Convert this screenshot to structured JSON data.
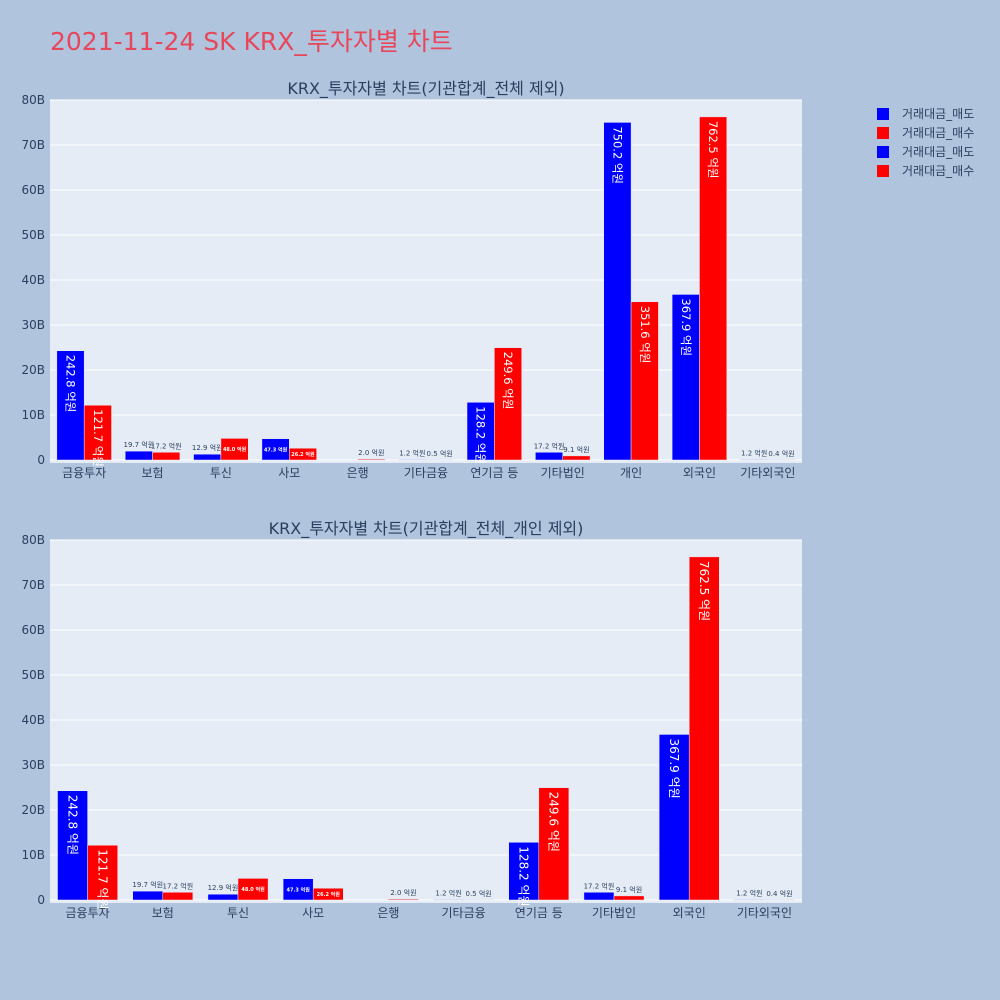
{
  "page_title": "2021-11-24 SK KRX_투자자별 차트",
  "legend": [
    {
      "label": "거래대금_매도",
      "color": "#0000ff"
    },
    {
      "label": "거래대금_매수",
      "color": "#ff0000"
    },
    {
      "label": "거래대금_매도",
      "color": "#0000ff"
    },
    {
      "label": "거래대금_매수",
      "color": "#ff0000"
    }
  ],
  "chart_data": [
    {
      "type": "bar",
      "title": "KRX_투자자별 차트(기관합계_전체 제외)",
      "categories": [
        "금융투자",
        "보험",
        "투신",
        "사모",
        "은행",
        "기타금융",
        "연기금 등",
        "기타법인",
        "개인",
        "외국인",
        "기타외국인"
      ],
      "ylim": [
        0,
        80
      ],
      "yticks": [
        "0",
        "10B",
        "20B",
        "30B",
        "40B",
        "50B",
        "60B",
        "70B",
        "80B"
      ],
      "grid": true,
      "legend_position": "top-right",
      "series": [
        {
          "name": "거래대금_매도",
          "color": "#0000ff",
          "values": [
            24.28,
            1.97,
            1.29,
            4.73,
            0,
            0.12,
            12.82,
            1.72,
            75.02,
            36.79,
            0.12
          ],
          "labels": [
            "242.8 억원",
            "19.7 억원",
            "12.9 억원",
            "47.3 억원",
            "",
            "1.2 억원",
            "128.2 억원",
            "17.2 억원",
            "750.2 억원",
            "367.9 억원",
            "1.2 억원"
          ]
        },
        {
          "name": "거래대금_매수",
          "color": "#ff0000",
          "values": [
            12.17,
            1.72,
            4.8,
            2.62,
            0.2,
            0.05,
            24.96,
            0.91,
            35.16,
            76.25,
            0.04
          ],
          "labels": [
            "121.7 억원",
            "17.2 억원",
            "48.0 억원",
            "26.2 억원",
            "2.0 억원",
            "0.5 억원",
            "249.6 억원",
            "9.1 억원",
            "351.6 억원",
            "762.5 억원",
            "0.4 억원"
          ]
        }
      ]
    },
    {
      "type": "bar",
      "title": "KRX_투자자별 차트(기관합계_전체_개인 제외)",
      "categories": [
        "금융투자",
        "보험",
        "투신",
        "사모",
        "은행",
        "기타금융",
        "연기금 등",
        "기타법인",
        "외국인",
        "기타외국인"
      ],
      "ylim": [
        0,
        80
      ],
      "yticks": [
        "0",
        "10B",
        "20B",
        "30B",
        "40B",
        "50B",
        "60B",
        "70B",
        "80B"
      ],
      "grid": true,
      "series": [
        {
          "name": "거래대금_매도",
          "color": "#0000ff",
          "values": [
            24.28,
            1.97,
            1.29,
            4.73,
            0,
            0.12,
            12.82,
            1.72,
            36.79,
            0.12
          ],
          "labels": [
            "242.8 억원",
            "19.7 억원",
            "12.9 억원",
            "47.3 억원",
            "",
            "1.2 억원",
            "128.2 억원",
            "17.2 억원",
            "367.9 억원",
            "1.2 억원"
          ]
        },
        {
          "name": "거래대금_매수",
          "color": "#ff0000",
          "values": [
            12.17,
            1.72,
            4.8,
            2.62,
            0.2,
            0.05,
            24.96,
            0.91,
            76.25,
            0.04
          ],
          "labels": [
            "121.7 억원",
            "17.2 억원",
            "48.0 억원",
            "26.2 억원",
            "2.0 억원",
            "0.5 억원",
            "249.6 억원",
            "9.1 억원",
            "762.5 억원",
            "0.4 억원"
          ]
        }
      ]
    }
  ]
}
